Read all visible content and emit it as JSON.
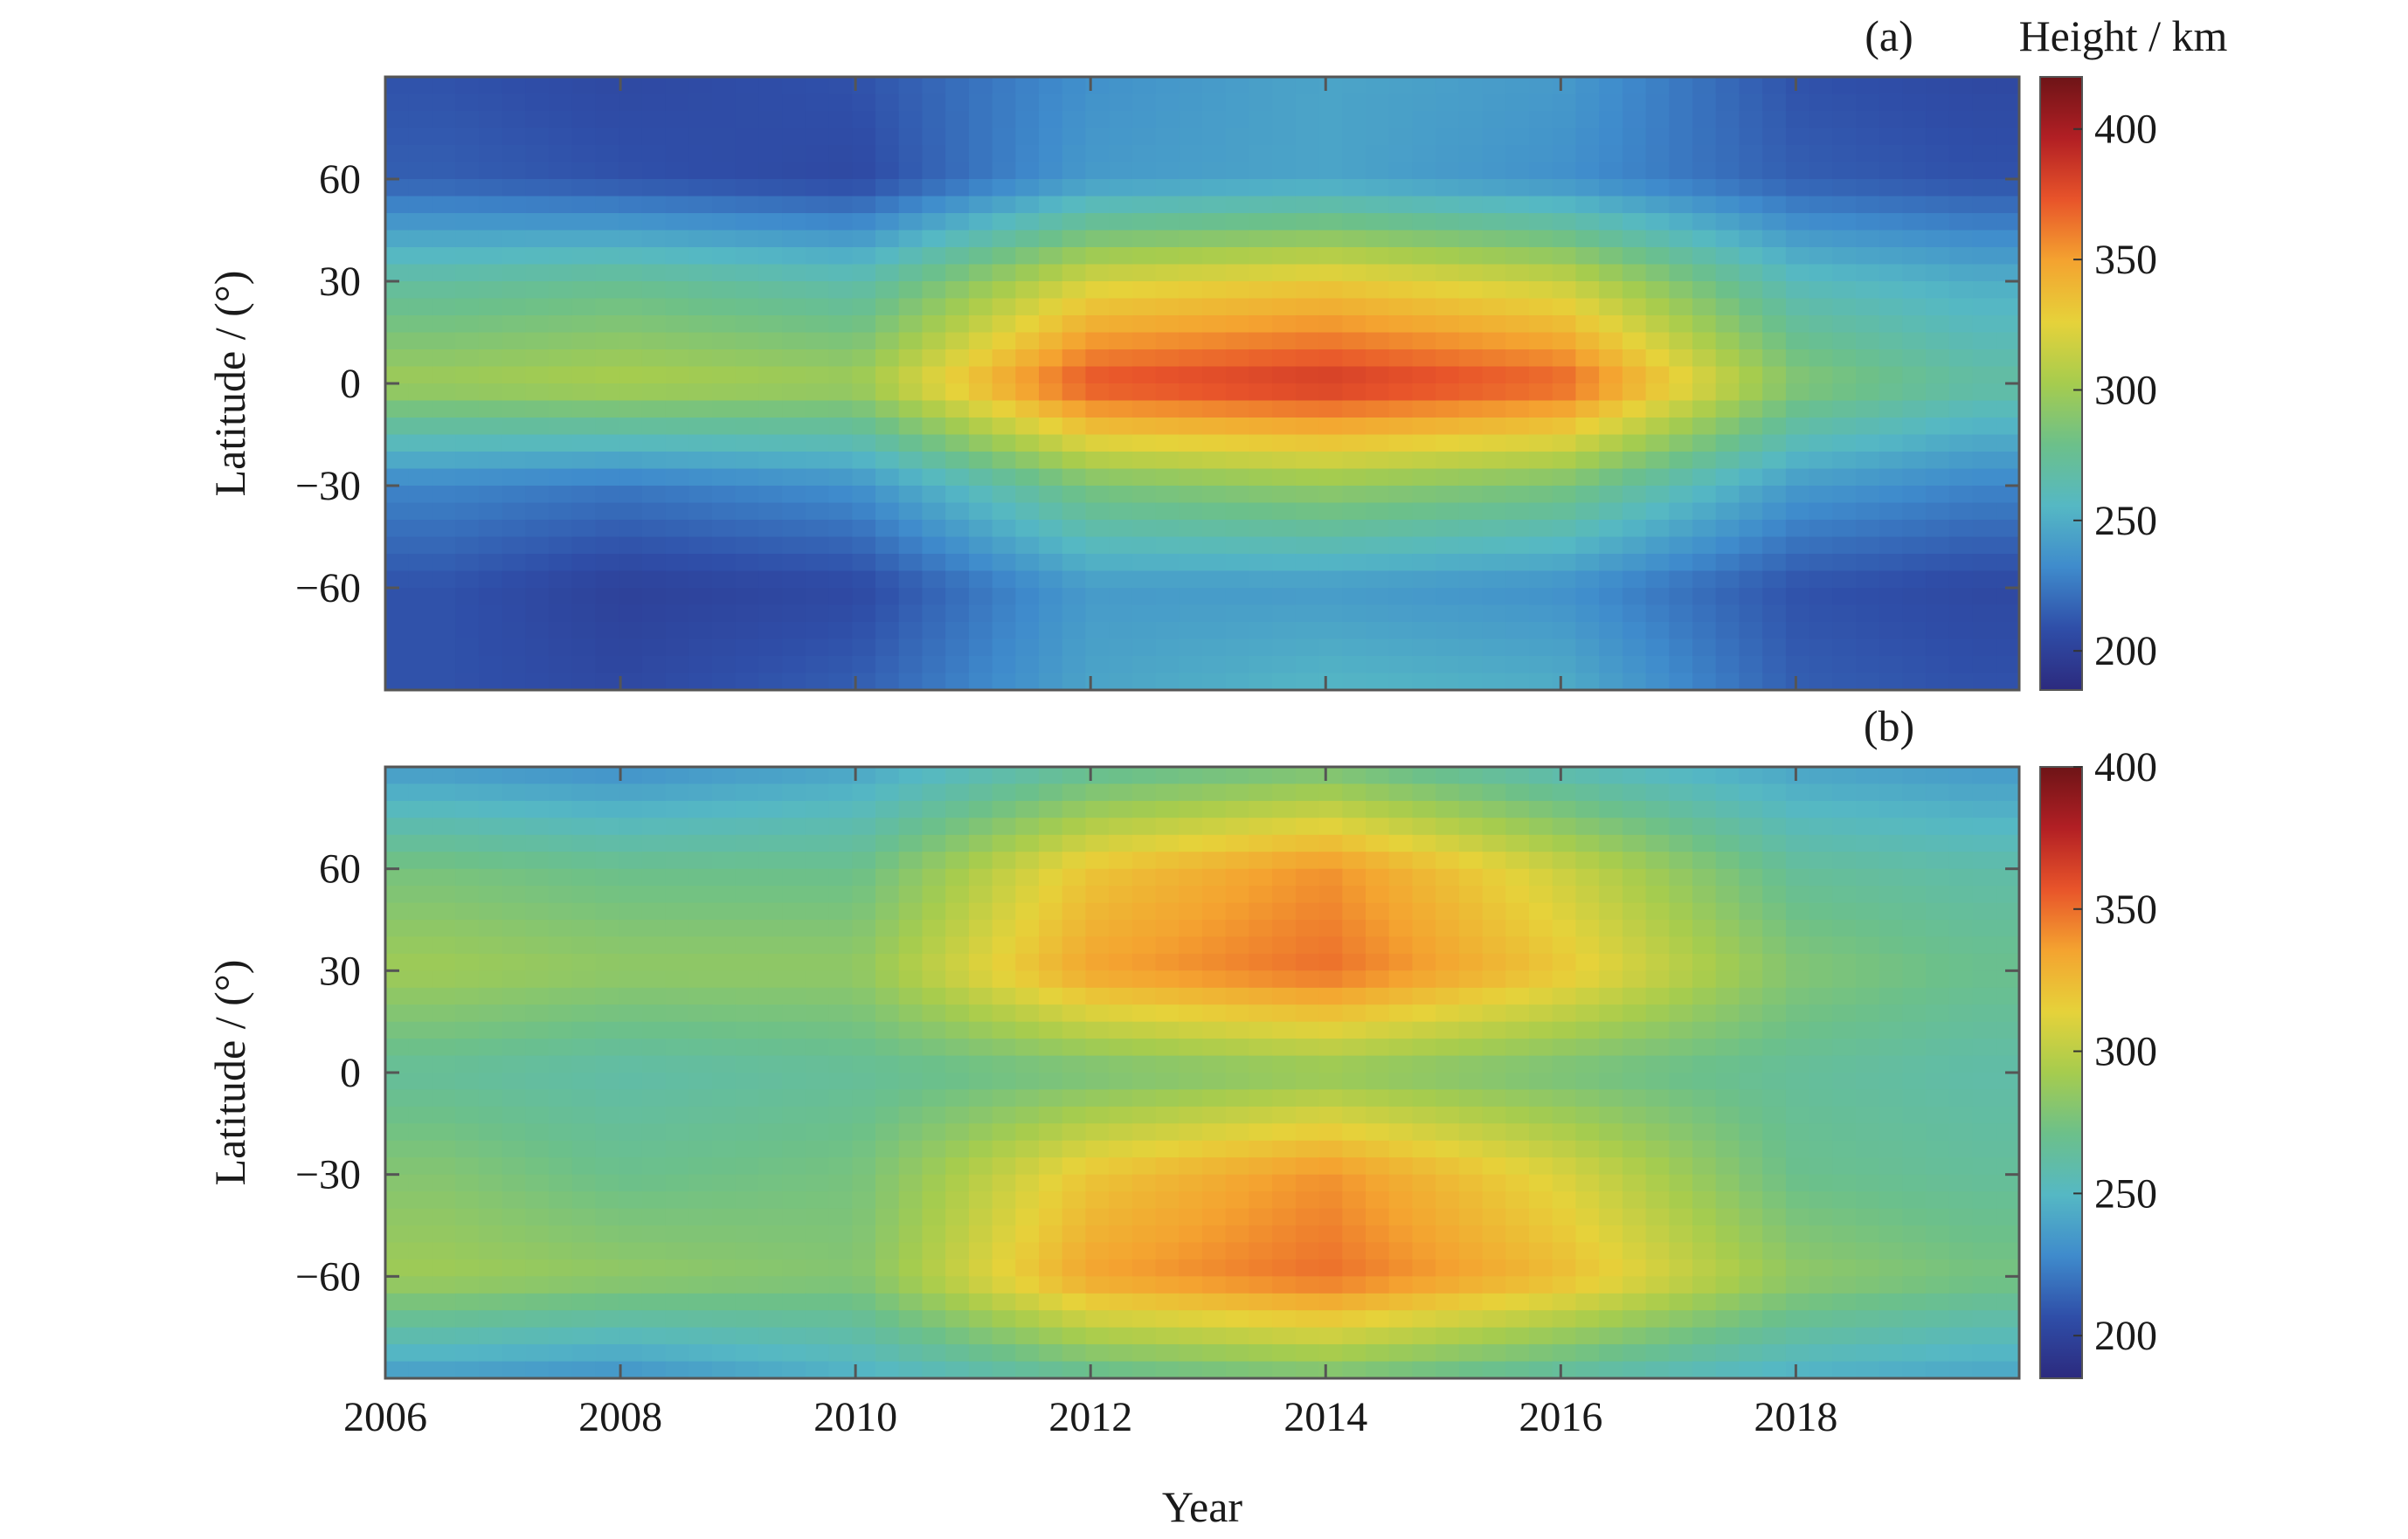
{
  "figure": {
    "xlabel": "Year",
    "x_ticks": [
      "2006",
      "2008",
      "2010",
      "2012",
      "2014",
      "2016",
      "2018"
    ]
  },
  "chart_data": [
    {
      "type": "heatmap",
      "panel_label": "(a)",
      "colorbar_title": "Height / km",
      "xlabel": "",
      "ylabel": "Latitude / (°)",
      "xlim": [
        2006,
        2019.9
      ],
      "ylim": [
        -90,
        90
      ],
      "x_ticks": [
        2006,
        2008,
        2010,
        2012,
        2014,
        2016,
        2018
      ],
      "y_ticks": [
        -60,
        -30,
        0,
        30,
        60
      ],
      "y_tick_labels": [
        "−60",
        "−30",
        "0",
        "30",
        "60"
      ],
      "colorbar_range": [
        185,
        420
      ],
      "colorbar_ticks": [
        200,
        250,
        300,
        350,
        400
      ],
      "colorscale": [
        "#2c2a7e",
        "#2f4ea8",
        "#3f8bcc",
        "#55b8c4",
        "#6cc08a",
        "#a6cc4e",
        "#e6d23a",
        "#f4a330",
        "#e8542a",
        "#b21f24",
        "#6e1417"
      ],
      "grid": false,
      "description_of_field": {
        "latitudes": [
          -90,
          -60,
          -30,
          0,
          30,
          60,
          90
        ],
        "years": [
          2006.5,
          2008,
          2010,
          2012,
          2014,
          2016,
          2018,
          2019.5
        ],
        "height_km": [
          [
            210,
            205,
            215,
            245,
            255,
            250,
            215,
            210
          ],
          [
            210,
            200,
            205,
            240,
            240,
            235,
            210,
            205
          ],
          [
            230,
            225,
            235,
            285,
            295,
            285,
            240,
            230
          ],
          [
            300,
            305,
            300,
            375,
            385,
            370,
            290,
            270
          ],
          [
            270,
            275,
            265,
            320,
            330,
            315,
            260,
            250
          ],
          [
            215,
            210,
            205,
            240,
            245,
            235,
            215,
            210
          ],
          [
            210,
            205,
            210,
            235,
            245,
            240,
            210,
            205
          ]
        ]
      }
    },
    {
      "type": "heatmap",
      "panel_label": "(b)",
      "colorbar_title": "",
      "xlabel": "Year",
      "ylabel": "Latitude / (°)",
      "xlim": [
        2006,
        2019.9
      ],
      "ylim": [
        -90,
        90
      ],
      "x_ticks": [
        2006,
        2008,
        2010,
        2012,
        2014,
        2016,
        2018
      ],
      "y_ticks": [
        -60,
        -30,
        0,
        30,
        60
      ],
      "y_tick_labels": [
        "−60",
        "−30",
        "0",
        "30",
        "60"
      ],
      "colorbar_range": [
        185,
        400
      ],
      "colorbar_ticks": [
        200,
        250,
        300,
        350,
        400
      ],
      "colorscale": [
        "#2c2a7e",
        "#2f4ea8",
        "#3f8bcc",
        "#55b8c4",
        "#6cc08a",
        "#a6cc4e",
        "#e6d23a",
        "#f4a330",
        "#e8542a",
        "#b21f24",
        "#6e1417"
      ],
      "grid": false,
      "description_of_field": {
        "latitudes": [
          -90,
          -60,
          -30,
          0,
          30,
          60,
          90
        ],
        "years": [
          2006.5,
          2008,
          2010,
          2012,
          2014,
          2016,
          2018,
          2019.5
        ],
        "height_km": [
          [
            235,
            230,
            245,
            265,
            275,
            260,
            245,
            240
          ],
          [
            290,
            285,
            280,
            335,
            350,
            325,
            285,
            275
          ],
          [
            280,
            270,
            275,
            320,
            340,
            310,
            270,
            265
          ],
          [
            265,
            260,
            265,
            275,
            285,
            275,
            265,
            260
          ],
          [
            290,
            285,
            285,
            335,
            350,
            320,
            280,
            270
          ],
          [
            275,
            270,
            270,
            320,
            340,
            305,
            265,
            260
          ],
          [
            235,
            230,
            240,
            265,
            275,
            255,
            240,
            235
          ]
        ]
      }
    }
  ]
}
